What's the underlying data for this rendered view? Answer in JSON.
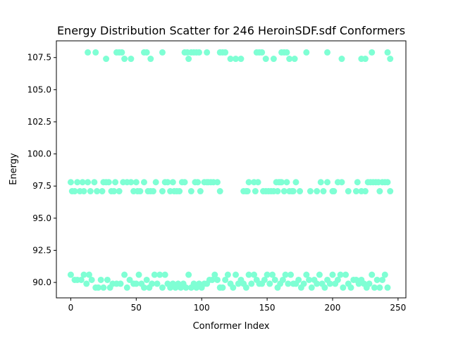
{
  "chart_data": {
    "type": "scatter",
    "title": "Energy Distribution Scatter for 246 HeroinSDF.sdf Conformers",
    "xlabel": "Conformer Index",
    "ylabel": "Energy",
    "xlim": [
      -11,
      256
    ],
    "ylim": [
      88.8,
      108.8
    ],
    "xticks": [
      0,
      50,
      100,
      150,
      200,
      250
    ],
    "yticks": [
      90.0,
      92.5,
      95.0,
      97.5,
      100.0,
      102.5,
      105.0,
      107.5
    ],
    "ytick_labels": [
      "90.0",
      "92.5",
      "95.0",
      "97.5",
      "100.0",
      "102.5",
      "105.0",
      "107.5"
    ],
    "marker_color": "#7fffd4",
    "grid": false,
    "series": [
      {
        "x": [
          13,
          19,
          27,
          35,
          37,
          39,
          41,
          46,
          56,
          58,
          61,
          70,
          87,
          89,
          90,
          92,
          94,
          96,
          98,
          104,
          114,
          116,
          118,
          122,
          126,
          130,
          142,
          144,
          146,
          149,
          155,
          161,
          163,
          165,
          167,
          171,
          180,
          196,
          207,
          222,
          225,
          230,
          242,
          244
        ],
        "y": [
          107.9,
          107.9,
          107.4,
          107.9,
          107.9,
          107.9,
          107.4,
          107.4,
          107.9,
          107.9,
          107.4,
          107.9,
          107.9,
          107.9,
          107.4,
          107.9,
          107.9,
          107.9,
          107.9,
          107.9,
          107.9,
          107.9,
          107.9,
          107.4,
          107.4,
          107.4,
          107.9,
          107.9,
          107.9,
          107.4,
          107.4,
          107.9,
          107.9,
          107.9,
          107.4,
          107.4,
          107.9,
          107.9,
          107.4,
          107.4,
          107.4,
          107.9,
          107.9,
          107.4
        ]
      },
      {
        "x": [
          0,
          1,
          3,
          5,
          7,
          9,
          10,
          13,
          15,
          18,
          20,
          24,
          25,
          27,
          29,
          31,
          33,
          34,
          37,
          40,
          43,
          46,
          48,
          50,
          51,
          53,
          56,
          59,
          61,
          63,
          65,
          70,
          72,
          74,
          76,
          78,
          79,
          81,
          83,
          85,
          87,
          92,
          95,
          97,
          99,
          102,
          104,
          105,
          107,
          109,
          112,
          114,
          132,
          134,
          135,
          136,
          140,
          141,
          143,
          147,
          149,
          151,
          153,
          155,
          157,
          158,
          159,
          160,
          161,
          163,
          165,
          167,
          169,
          170,
          172,
          175,
          183,
          188,
          191,
          193,
          196,
          200,
          201,
          204,
          207,
          212,
          218,
          219,
          222,
          225,
          227,
          229,
          231,
          233,
          235,
          236,
          238,
          240,
          242,
          244
        ],
        "y": [
          97.8,
          97.1,
          97.1,
          97.8,
          97.1,
          97.8,
          97.1,
          97.8,
          97.1,
          97.8,
          97.1,
          97.1,
          97.8,
          97.8,
          97.8,
          97.1,
          97.1,
          97.8,
          97.1,
          97.8,
          97.8,
          97.8,
          97.1,
          97.8,
          97.1,
          97.1,
          97.8,
          97.1,
          97.1,
          97.1,
          97.8,
          97.1,
          97.8,
          97.8,
          97.1,
          97.8,
          97.1,
          97.1,
          97.1,
          97.8,
          97.8,
          97.1,
          97.8,
          97.8,
          97.1,
          97.8,
          97.8,
          97.8,
          97.8,
          97.8,
          97.8,
          97.1,
          97.1,
          97.1,
          97.1,
          97.8,
          97.8,
          97.1,
          97.8,
          97.1,
          97.1,
          97.1,
          97.1,
          97.1,
          97.8,
          97.1,
          97.8,
          97.8,
          97.8,
          97.1,
          97.8,
          97.1,
          97.1,
          97.1,
          97.8,
          97.1,
          97.1,
          97.1,
          97.8,
          97.1,
          97.8,
          97.1,
          97.1,
          97.8,
          97.8,
          97.1,
          97.1,
          97.8,
          97.1,
          97.1,
          97.8,
          97.8,
          97.8,
          97.8,
          97.8,
          97.1,
          97.8,
          97.8,
          97.8,
          97.1
        ]
      },
      {
        "x": [
          0,
          3,
          5,
          8,
          10,
          12,
          14,
          16,
          19,
          21,
          23,
          25,
          28,
          30,
          32,
          35,
          38,
          41,
          43,
          45,
          48,
          50,
          52,
          54,
          56,
          58,
          60,
          62,
          64,
          66,
          68,
          70,
          72,
          74,
          76,
          78,
          80,
          82,
          84,
          86,
          88,
          90,
          92,
          94,
          96,
          98,
          100,
          102,
          104,
          106,
          108,
          110,
          112,
          114,
          116,
          118,
          120,
          122,
          124,
          126,
          128,
          130,
          132,
          134,
          136,
          138,
          140,
          142,
          144,
          146,
          148,
          150,
          152,
          154,
          156,
          158,
          160,
          162,
          164,
          166,
          168,
          170,
          172,
          174,
          176,
          178,
          180,
          182,
          184,
          186,
          188,
          190,
          192,
          194,
          196,
          198,
          200,
          202,
          204,
          206,
          208,
          210,
          212,
          214,
          216,
          218,
          220,
          222,
          224,
          226,
          228,
          230,
          232,
          234,
          236,
          238,
          240,
          242
        ],
        "y": [
          90.6,
          90.2,
          90.2,
          90.2,
          90.6,
          89.9,
          90.6,
          90.2,
          89.6,
          89.6,
          90.2,
          89.6,
          90.2,
          89.6,
          89.9,
          89.9,
          89.9,
          90.6,
          89.6,
          90.2,
          89.9,
          89.9,
          90.6,
          89.9,
          89.6,
          90.2,
          89.6,
          89.9,
          90.6,
          89.9,
          90.6,
          89.6,
          90.6,
          89.9,
          89.6,
          89.9,
          89.6,
          89.9,
          89.6,
          89.9,
          89.6,
          90.6,
          89.6,
          89.9,
          89.6,
          89.9,
          89.6,
          89.9,
          89.9,
          90.2,
          90.2,
          90.6,
          90.2,
          89.6,
          89.6,
          90.2,
          90.6,
          89.9,
          89.6,
          90.6,
          89.9,
          90.2,
          89.9,
          89.6,
          90.6,
          89.9,
          90.6,
          90.2,
          89.9,
          89.9,
          90.2,
          90.6,
          89.9,
          90.6,
          90.2,
          89.6,
          89.9,
          90.2,
          90.6,
          89.9,
          90.6,
          89.9,
          89.9,
          90.2,
          89.6,
          89.9,
          90.6,
          90.2,
          89.6,
          90.2,
          89.9,
          90.6,
          89.9,
          89.6,
          90.2,
          89.9,
          90.6,
          89.9,
          90.2,
          90.6,
          89.6,
          90.6,
          89.9,
          89.6,
          90.2,
          90.2,
          89.9,
          90.2,
          89.9,
          89.6,
          89.9,
          90.6,
          89.6,
          90.2,
          89.6,
          90.2,
          90.6,
          89.6
        ]
      }
    ]
  }
}
